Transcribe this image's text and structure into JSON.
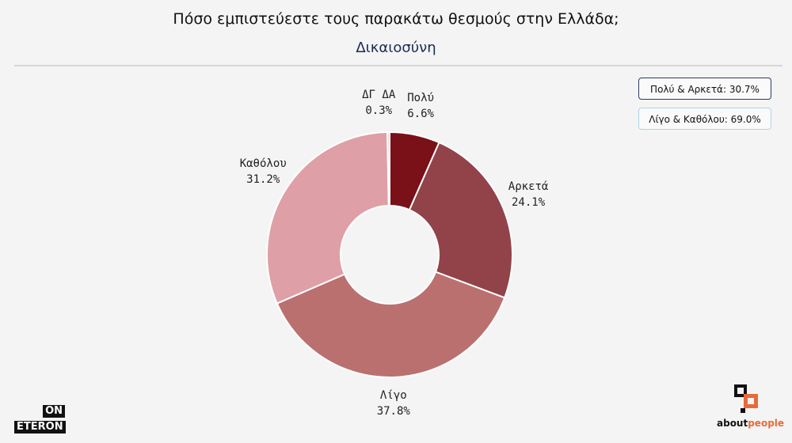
{
  "header": {
    "title": "Πόσο εμπιστεύεστε τους παρακάτω θεσμούς στην Ελλάδα;",
    "subtitle": "Δικαιοσύνη"
  },
  "summary": {
    "positive": "Πολύ & Αρκετά: 30.7%",
    "negative": "Λίγο & Καθόλου: 69.0%"
  },
  "logos": {
    "left_top": "ON",
    "left_bottom": "ETERON",
    "right_a": "about",
    "right_b": "people"
  },
  "chart_data": {
    "type": "pie",
    "title": "Πόσο εμπιστεύεστε τους παρακάτω θεσμούς στην Ελλάδα;",
    "subtitle": "Δικαιοσύνη",
    "donut": true,
    "slices": [
      {
        "label": "Πολύ",
        "value": 6.6,
        "display": "6.6%",
        "color": "#7a1018"
      },
      {
        "label": "Αρκετά",
        "value": 24.1,
        "display": "24.1%",
        "color": "#914349"
      },
      {
        "label": "Λίγο",
        "value": 37.8,
        "display": "37.8%",
        "color": "#bb7070"
      },
      {
        "label": "Καθόλου",
        "value": 31.2,
        "display": "31.2%",
        "color": "#df9fa6"
      },
      {
        "label": "ΔΓ ΔΑ",
        "value": 0.3,
        "display": "0.3%",
        "color": "#f2c8c2"
      }
    ]
  }
}
